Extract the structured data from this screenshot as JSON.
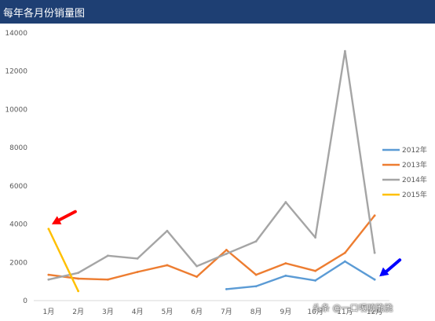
{
  "chart_data": {
    "type": "line",
    "title": "每年各月份销量图",
    "categories": [
      "1月",
      "2月",
      "3月",
      "4月",
      "5月",
      "6月",
      "7月",
      "8月",
      "9月",
      "10月",
      "11月",
      "12月"
    ],
    "ylim": [
      0,
      14000
    ],
    "yticks": [
      0,
      2000,
      4000,
      6000,
      8000,
      10000,
      12000,
      14000
    ],
    "grid": false,
    "legend_position": "right",
    "series": [
      {
        "name": "2012年",
        "color": "#5b9bd5",
        "values": [
          null,
          null,
          null,
          null,
          null,
          null,
          600,
          750,
          1300,
          1050,
          2050,
          1100
        ]
      },
      {
        "name": "2013年",
        "color": "#ed7d31",
        "values": [
          1350,
          1150,
          1100,
          1500,
          1850,
          1250,
          2650,
          1350,
          1950,
          1550,
          2500,
          4450
        ]
      },
      {
        "name": "2014年",
        "color": "#a5a5a5",
        "values": [
          1100,
          1450,
          2350,
          2200,
          3650,
          1800,
          2450,
          3100,
          5150,
          3300,
          13050,
          2500
        ]
      },
      {
        "name": "2015年",
        "color": "#ffc000",
        "values": [
          3750,
          500,
          null,
          null,
          null,
          null,
          null,
          null,
          null,
          null,
          null,
          null
        ]
      }
    ],
    "annotations": [
      {
        "type": "arrow",
        "color": "#ff0000",
        "target": {
          "category": "1月",
          "value": 3750
        }
      },
      {
        "type": "arrow",
        "color": "#0000ff",
        "target": {
          "category": "12月",
          "value": 1100
        }
      }
    ]
  },
  "watermark": {
    "text": "头条 @一口嘎嘣脆脆"
  }
}
